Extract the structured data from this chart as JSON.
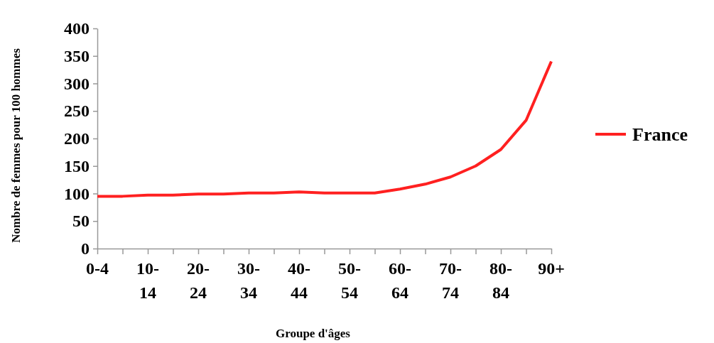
{
  "chart_data": {
    "type": "line",
    "xlabel": "Groupe d'âges",
    "ylabel": "Nombre de femmes pour 100 hommes",
    "categories": [
      "0-4",
      null,
      "10-14",
      null,
      "20-24",
      null,
      "30-34",
      null,
      "40-44",
      null,
      "50-54",
      null,
      "60-64",
      null,
      "70-74",
      null,
      "80-84",
      null,
      "90+"
    ],
    "series": [
      {
        "name": "France",
        "color": "#ff2020",
        "values": [
          95,
          95,
          97,
          97,
          99,
          99,
          101,
          101,
          103,
          101,
          101,
          101,
          108,
          117,
          130,
          150,
          180,
          233,
          340
        ]
      }
    ],
    "ylim": [
      0,
      400
    ],
    "yticks": [
      0,
      50,
      100,
      150,
      200,
      250,
      300,
      350,
      400
    ],
    "grid": false,
    "legend": "right",
    "marker": "none",
    "line_style": "solid"
  }
}
